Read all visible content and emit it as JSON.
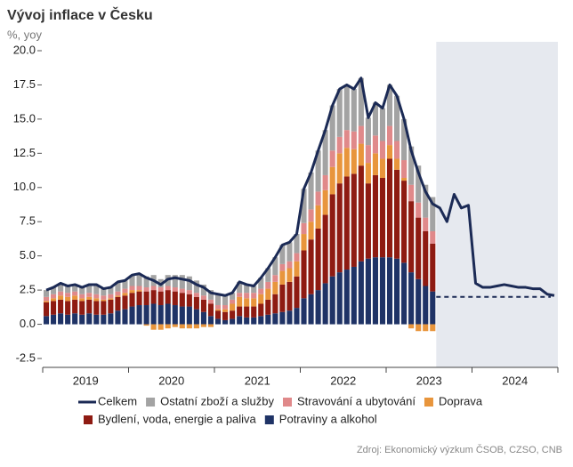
{
  "chart_data": {
    "type": "stacked_bar_line",
    "title": "Vývoj inflace v Česku",
    "subtitle": "%, yoy",
    "source": "Zdroj: Ekonomický výzkum ČSOB, CZSO, CNB",
    "categories": [
      null,
      null,
      null,
      null,
      null,
      "2019",
      null,
      null,
      null,
      null,
      null,
      null,
      null,
      null,
      null,
      null,
      null,
      "2020",
      null,
      null,
      null,
      null,
      null,
      null,
      null,
      null,
      null,
      null,
      null,
      "2021",
      null,
      null,
      null,
      null,
      null,
      null,
      null,
      null,
      null,
      null,
      null,
      "2022",
      null,
      null,
      null,
      null,
      null,
      null,
      null,
      null,
      null,
      null,
      null,
      "2023",
      null,
      null,
      null,
      null,
      null,
      null,
      null,
      null,
      null,
      null,
      null,
      "2024",
      null,
      null,
      null,
      null,
      null,
      null
    ],
    "ylim": [
      -2.5,
      20
    ],
    "yticks": [
      {
        "value": -2.5,
        "label": "-2.5"
      },
      {
        "value": 0,
        "label": "0.0"
      },
      {
        "value": 2.5,
        "label": "2.5"
      },
      {
        "value": 5,
        "label": "5.0"
      },
      {
        "value": 7.5,
        "label": "7.5"
      },
      {
        "value": 10,
        "label": "10.0"
      },
      {
        "value": 12.5,
        "label": "12.5"
      },
      {
        "value": 15,
        "label": "15.0"
      },
      {
        "value": 17.5,
        "label": "17.5"
      },
      {
        "value": 20,
        "label": "20.0"
      }
    ],
    "grid": false,
    "reference_line": 2,
    "shade_from_index": 55,
    "series": [
      {
        "name": "Celkem",
        "kind": "line",
        "color": "#1b2a55",
        "values": [
          2.5,
          2.7,
          3.0,
          2.8,
          2.9,
          2.7,
          2.9,
          2.9,
          2.6,
          2.7,
          3.1,
          3.2,
          3.6,
          3.7,
          3.4,
          3.2,
          2.9,
          3.3,
          3.4,
          3.3,
          3.2,
          2.9,
          2.7,
          2.3,
          2.2,
          2.1,
          2.3,
          3.1,
          2.9,
          2.8,
          3.4,
          4.1,
          4.9,
          5.8,
          6.0,
          6.6,
          9.9,
          11.1,
          12.7,
          14.2,
          16.0,
          17.2,
          17.5,
          17.2,
          18.0,
          15.1,
          16.2,
          15.8,
          17.5,
          16.7,
          15.0,
          12.7,
          11.1,
          9.7,
          8.8,
          8.5,
          7.5,
          9.5,
          8.5,
          8.7,
          3.0,
          2.7,
          2.7,
          2.8,
          2.9,
          2.8,
          2.7,
          2.7,
          2.6,
          2.6,
          2.2,
          2.1
        ]
      },
      {
        "name": "Ostatní zboží a služby",
        "kind": "bar",
        "color": "#a3a3a3",
        "values": [
          0.5,
          0.5,
          0.6,
          0.5,
          0.5,
          0.5,
          0.6,
          0.7,
          0.5,
          0.5,
          0.7,
          0.6,
          0.8,
          0.9,
          0.8,
          0.8,
          0.6,
          0.8,
          0.9,
          1.0,
          1.0,
          0.9,
          0.8,
          0.7,
          0.8,
          0.7,
          0.5,
          0.8,
          0.6,
          0.5,
          0.8,
          1.0,
          1.3,
          1.4,
          1.4,
          1.4,
          2.5,
          2.7,
          3.0,
          3.3,
          3.3,
          3.5,
          3.3,
          3.1,
          3.5,
          2.0,
          2.4,
          2.4,
          3.0,
          3.3,
          3.0,
          2.8,
          2.7,
          2.4,
          2.5,
          null,
          null,
          null,
          null,
          null,
          null,
          null,
          null,
          null,
          null,
          null,
          null,
          null,
          null,
          null,
          null,
          null
        ]
      },
      {
        "name": "Stravování a ubytování",
        "kind": "bar",
        "color": "#e0898a",
        "values": [
          0.3,
          0.3,
          0.3,
          0.3,
          0.3,
          0.3,
          0.3,
          0.3,
          0.3,
          0.3,
          0.3,
          0.3,
          0.3,
          0.3,
          0.3,
          0.3,
          0.3,
          0.3,
          0.3,
          0.3,
          0.3,
          0.3,
          0.3,
          0.3,
          0.3,
          0.3,
          0.3,
          0.3,
          0.4,
          0.4,
          0.4,
          0.5,
          0.5,
          0.5,
          0.5,
          0.6,
          0.8,
          0.9,
          1.0,
          1.1,
          1.2,
          1.2,
          1.3,
          1.3,
          1.3,
          1.3,
          1.3,
          1.3,
          1.4,
          1.3,
          1.3,
          1.2,
          1.1,
          1.0,
          0.9,
          null,
          null,
          null,
          null,
          null,
          null,
          null,
          null,
          null,
          null,
          null,
          null,
          null,
          null,
          null,
          null,
          null
        ]
      },
      {
        "name": "Doprava",
        "kind": "bar",
        "color": "#e8953c",
        "values": [
          0.1,
          0.2,
          0.3,
          0.3,
          0.3,
          0.2,
          0.2,
          0.2,
          0.1,
          0.1,
          0.1,
          0.2,
          0.2,
          0.1,
          -0.1,
          -0.4,
          -0.4,
          -0.3,
          -0.2,
          -0.3,
          -0.3,
          -0.3,
          -0.2,
          -0.2,
          0.1,
          0.2,
          0.5,
          0.7,
          0.6,
          0.6,
          0.7,
          0.8,
          0.9,
          1.0,
          1.0,
          1.1,
          1.2,
          1.3,
          1.7,
          1.8,
          2.0,
          2.2,
          2.1,
          1.8,
          1.6,
          1.5,
          1.6,
          1.4,
          1.0,
          0.8,
          0.2,
          -0.3,
          -0.5,
          -0.5,
          -0.5,
          null,
          null,
          null,
          null,
          null,
          null,
          null,
          null,
          null,
          null,
          null,
          null,
          null,
          null,
          null,
          null,
          null
        ]
      },
      {
        "name": "Bydlení, voda, energie a paliva",
        "kind": "bar",
        "color": "#8e1b12",
        "values": [
          1.0,
          1.0,
          1.0,
          1.0,
          1.0,
          1.0,
          1.0,
          1.0,
          1.0,
          1.0,
          1.0,
          1.0,
          1.0,
          1.0,
          1.0,
          1.0,
          1.0,
          1.0,
          1.0,
          1.0,
          0.9,
          0.9,
          0.9,
          0.9,
          0.6,
          0.6,
          0.6,
          0.7,
          0.8,
          0.8,
          0.9,
          1.1,
          1.4,
          2.0,
          2.1,
          2.3,
          3.5,
          4.0,
          4.5,
          5.0,
          6.0,
          6.5,
          6.8,
          6.8,
          7.0,
          5.5,
          6.0,
          5.8,
          7.2,
          6.5,
          6.0,
          5.2,
          4.5,
          4.0,
          3.5,
          null,
          null,
          null,
          null,
          null,
          null,
          null,
          null,
          null,
          null,
          null,
          null,
          null,
          null,
          null,
          null,
          null
        ]
      },
      {
        "name": "Potraviny a alkohol",
        "kind": "bar",
        "color": "#1f3366",
        "values": [
          0.6,
          0.7,
          0.8,
          0.7,
          0.8,
          0.7,
          0.8,
          0.7,
          0.7,
          0.8,
          1.0,
          1.1,
          1.3,
          1.4,
          1.4,
          1.5,
          1.4,
          1.5,
          1.4,
          1.3,
          1.3,
          1.1,
          0.9,
          0.6,
          0.4,
          0.3,
          0.4,
          0.6,
          0.5,
          0.5,
          0.6,
          0.7,
          0.8,
          0.9,
          1.0,
          1.2,
          1.9,
          2.2,
          2.5,
          3.0,
          3.5,
          3.8,
          4.0,
          4.2,
          4.6,
          4.8,
          4.9,
          4.9,
          4.9,
          4.8,
          4.5,
          3.8,
          3.3,
          2.8,
          2.4,
          null,
          null,
          null,
          null,
          null,
          null,
          null,
          null,
          null,
          null,
          null,
          null,
          null,
          null,
          null,
          null,
          null
        ]
      }
    ]
  }
}
